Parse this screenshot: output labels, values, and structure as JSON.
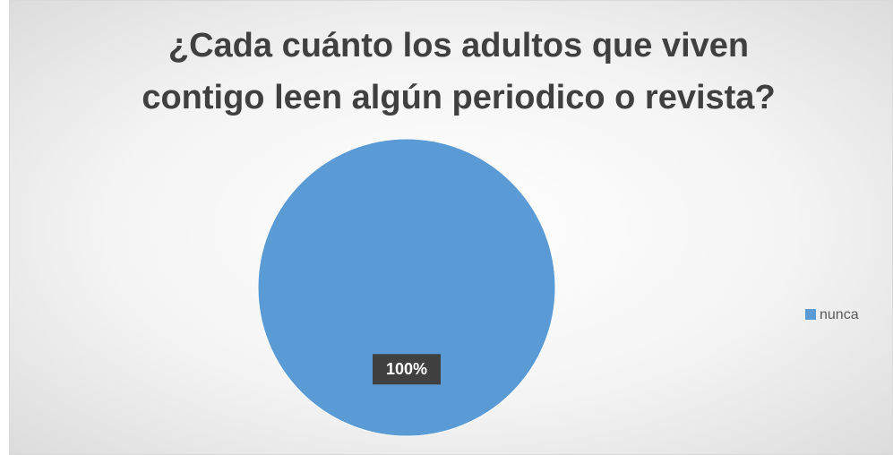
{
  "chart_data": {
    "type": "pie",
    "title": "¿Cada cuánto los adultos que viven contigo leen algún periodico o revista?",
    "categories": [
      "nunca"
    ],
    "values": [
      100
    ],
    "value_labels": [
      "100%"
    ],
    "colors": [
      "#5b9bd5"
    ],
    "legend": "right"
  }
}
